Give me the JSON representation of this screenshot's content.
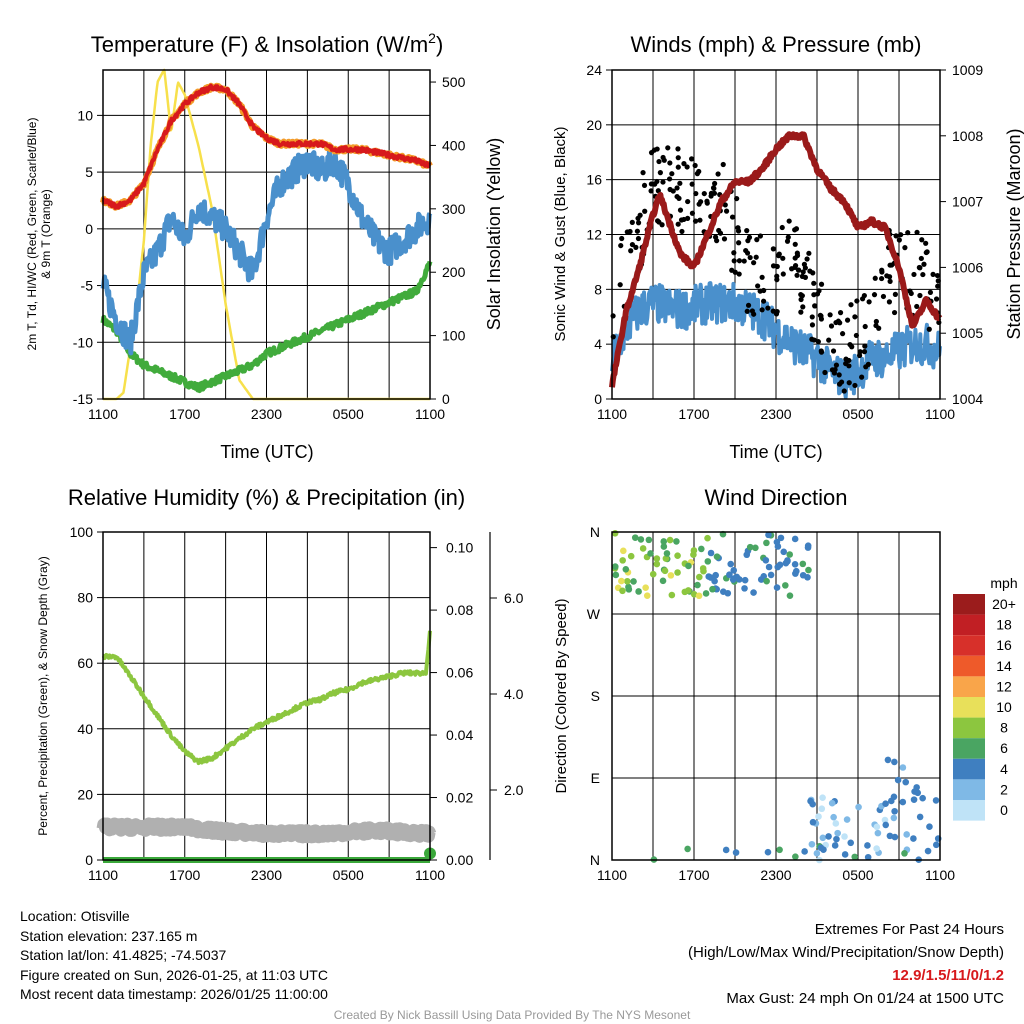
{
  "chart_data": [
    {
      "type": "line",
      "title": "Temperature (F) & Insolation (W/m²)",
      "title_main": "Temperature (F) & Insolation (W/m",
      "title_sup": "2",
      "title_end": ")",
      "xlabel": "Time (UTC)",
      "ylabel_line1": "2m T, Td, HI/WC (Red, Green, Scarlet/Blue)",
      "ylabel_line2": "& 9m T (Orange)",
      "y2label": "Solar Insolation (Yellow)",
      "xticks": [
        "1100",
        "1700",
        "2300",
        "0500",
        "1100"
      ],
      "yticks": [
        -15,
        -10,
        -5,
        0,
        5,
        10
      ],
      "y2ticks": [
        0,
        100,
        200,
        300,
        400,
        500
      ],
      "ylim": [
        -15,
        14
      ],
      "y2lim": [
        0,
        519
      ],
      "xlim": [
        0,
        24
      ],
      "series": [
        {
          "name": "2m T",
          "color": "#d7191c",
          "axis": "left",
          "points": [
            [
              0,
              2.5
            ],
            [
              1,
              2
            ],
            [
              2,
              2.5
            ],
            [
              3,
              4
            ],
            [
              4,
              7
            ],
            [
              5,
              9.5
            ],
            [
              6,
              11
            ],
            [
              7,
              12
            ],
            [
              8,
              12.5
            ],
            [
              9,
              12.3
            ],
            [
              10,
              11
            ],
            [
              11,
              9
            ],
            [
              12,
              8
            ],
            [
              13,
              7.5
            ],
            [
              14,
              7.5
            ],
            [
              16,
              7.5
            ],
            [
              17,
              7
            ],
            [
              19,
              7
            ],
            [
              21,
              6.5
            ],
            [
              23,
              6
            ],
            [
              24,
              5.5
            ]
          ]
        },
        {
          "name": "Td",
          "color": "#4a90cc",
          "axis": "left",
          "noise": 1.2,
          "points": [
            [
              0,
              -5
            ],
            [
              1,
              -8
            ],
            [
              2,
              -10
            ],
            [
              3,
              -4
            ],
            [
              4,
              -2
            ],
            [
              5,
              1
            ],
            [
              6,
              -1
            ],
            [
              7,
              2
            ],
            [
              8,
              1
            ],
            [
              9,
              0
            ],
            [
              10,
              -2
            ],
            [
              11,
              -4
            ],
            [
              12,
              1
            ],
            [
              13,
              4
            ],
            [
              14,
              5
            ],
            [
              15,
              6
            ],
            [
              16,
              5
            ],
            [
              17,
              6
            ],
            [
              18,
              4
            ],
            [
              19,
              1
            ],
            [
              20,
              -1
            ],
            [
              21,
              -2
            ],
            [
              22,
              -1
            ],
            [
              23,
              0
            ],
            [
              24,
              1
            ]
          ]
        },
        {
          "name": "WC",
          "color": "#41ab3c",
          "axis": "left",
          "points": [
            [
              0,
              -8
            ],
            [
              1,
              -9
            ],
            [
              2,
              -11
            ],
            [
              3,
              -12
            ],
            [
              4,
              -12.5
            ],
            [
              5,
              -13
            ],
            [
              6,
              -13.5
            ],
            [
              7,
              -14
            ],
            [
              8,
              -13.5
            ],
            [
              9,
              -13
            ],
            [
              10,
              -12.5
            ],
            [
              11,
              -12
            ],
            [
              12,
              -11
            ],
            [
              14,
              -10
            ],
            [
              16,
              -9
            ],
            [
              18,
              -8
            ],
            [
              20,
              -7
            ],
            [
              22,
              -6
            ],
            [
              23,
              -5.5
            ],
            [
              24,
              -3
            ]
          ]
        },
        {
          "name": "Solar",
          "color": "#f7e04b",
          "axis": "right",
          "points": [
            [
              0,
              0
            ],
            [
              1,
              0
            ],
            [
              1.5,
              10
            ],
            [
              2,
              80
            ],
            [
              2.5,
              150
            ],
            [
              3,
              250
            ],
            [
              3.5,
              400
            ],
            [
              4,
              500
            ],
            [
              4.5,
              520
            ],
            [
              5,
              420
            ],
            [
              5.5,
              500
            ],
            [
              6,
              480
            ],
            [
              7,
              400
            ],
            [
              8,
              300
            ],
            [
              9,
              150
            ],
            [
              10,
              30
            ],
            [
              11,
              0
            ],
            [
              24,
              0
            ]
          ]
        }
      ]
    },
    {
      "type": "line",
      "title": "Winds (mph) & Pressure (mb)",
      "xlabel": "Time (UTC)",
      "ylabel": "Sonic Wind & Gust (Blue, Black)",
      "y2label": "Station Pressure (Maroon)",
      "xticks": [
        "1100",
        "1700",
        "2300",
        "0500",
        "1100"
      ],
      "yticks": [
        0,
        4,
        8,
        12,
        16,
        20,
        24
      ],
      "y2ticks": [
        1004,
        1005,
        1006,
        1007,
        1008,
        1009
      ],
      "ylim": [
        0,
        24
      ],
      "y2lim": [
        1004,
        1009
      ],
      "xlim": [
        0,
        24
      ],
      "series": [
        {
          "name": "Sonic Wind",
          "color": "#4a90cc",
          "axis": "left",
          "noise": 1.5,
          "points": [
            [
              0,
              3
            ],
            [
              1,
              5
            ],
            [
              2,
              6.5
            ],
            [
              3,
              7
            ],
            [
              5,
              6.5
            ],
            [
              7,
              7
            ],
            [
              9,
              7
            ],
            [
              11,
              6
            ],
            [
              12,
              5
            ],
            [
              14,
              3.5
            ],
            [
              15,
              3
            ],
            [
              16,
              2
            ],
            [
              17,
              1.5
            ],
            [
              18,
              2
            ],
            [
              19,
              3
            ],
            [
              20,
              3
            ],
            [
              21,
              3.5
            ],
            [
              22,
              4
            ],
            [
              23,
              4
            ],
            [
              24,
              3.5
            ]
          ]
        },
        {
          "name": "Gust",
          "color": "#000000",
          "axis": "left",
          "type": "scatter",
          "noise": 4,
          "points": [
            [
              0,
              6
            ],
            [
              2,
              11
            ],
            [
              3,
              15
            ],
            [
              4,
              14
            ],
            [
              6,
              14
            ],
            [
              8,
              13
            ],
            [
              10,
              8
            ],
            [
              12,
              8
            ],
            [
              13,
              10
            ],
            [
              14,
              7
            ],
            [
              16,
              3
            ],
            [
              17,
              2
            ],
            [
              18,
              3
            ],
            [
              19,
              4
            ],
            [
              20,
              8
            ],
            [
              22,
              8
            ],
            [
              24,
              6
            ]
          ]
        },
        {
          "name": "Pressure",
          "color": "#9a1a1a",
          "axis": "right",
          "points": [
            [
              0,
              1004.2
            ],
            [
              1,
              1005.3
            ],
            [
              2,
              1006
            ],
            [
              3,
              1006.8
            ],
            [
              3.5,
              1007.1
            ],
            [
              4,
              1006.8
            ],
            [
              5,
              1006.2
            ],
            [
              6,
              1006
            ],
            [
              7,
              1006.5
            ],
            [
              8,
              1007
            ],
            [
              9,
              1007.3
            ],
            [
              10,
              1007.3
            ],
            [
              11,
              1007.5
            ],
            [
              12,
              1007.8
            ],
            [
              13,
              1008
            ],
            [
              14,
              1008
            ],
            [
              15,
              1007.5
            ],
            [
              16,
              1007.2
            ],
            [
              17,
              1007
            ],
            [
              18,
              1006.6
            ],
            [
              19,
              1006.7
            ],
            [
              20,
              1006.6
            ],
            [
              21,
              1006
            ],
            [
              22,
              1005.1
            ],
            [
              23,
              1005.5
            ],
            [
              24,
              1005.2
            ]
          ]
        }
      ]
    },
    {
      "type": "line",
      "title": "Relative Humidity (%) & Precipitation (in)",
      "ylabel": "Percent, Precipitation (Green), & Snow Depth (Gray)",
      "xticks": [
        "1100",
        "1700",
        "2300",
        "0500",
        "1100"
      ],
      "yticks": [
        0,
        20,
        40,
        60,
        80,
        100
      ],
      "y2ticks": [
        "0.00",
        "0.02",
        "0.04",
        "0.06",
        "0.08",
        "0.10"
      ],
      "y3ticks": [
        "2.0",
        "4.0",
        "6.0"
      ],
      "ylim": [
        0,
        100
      ],
      "xlim": [
        0,
        24
      ],
      "series": [
        {
          "name": "RH",
          "color": "#8cc63f",
          "axis": "left",
          "noise": 0.6,
          "points": [
            [
              0,
              62
            ],
            [
              1,
              62
            ],
            [
              2,
              56
            ],
            [
              3,
              50
            ],
            [
              4,
              44
            ],
            [
              5,
              38
            ],
            [
              6,
              33
            ],
            [
              7,
              30
            ],
            [
              8,
              31
            ],
            [
              9,
              34
            ],
            [
              10,
              37
            ],
            [
              11,
              40
            ],
            [
              12,
              42
            ],
            [
              13,
              44
            ],
            [
              14,
              46
            ],
            [
              15,
              48
            ],
            [
              16,
              49
            ],
            [
              17,
              51
            ],
            [
              18,
              52
            ],
            [
              19,
              54
            ],
            [
              20,
              55
            ],
            [
              21,
              56
            ],
            [
              22,
              57
            ],
            [
              23.7,
              57
            ],
            [
              24,
              70
            ]
          ]
        },
        {
          "name": "Snow Depth",
          "color": "#b0b0b0",
          "axis": "left",
          "noise": 1,
          "points": [
            [
              0,
              10
            ],
            [
              6,
              10
            ],
            [
              8,
              9
            ],
            [
              12,
              8
            ],
            [
              16,
              8
            ],
            [
              20,
              9
            ],
            [
              24,
              8
            ]
          ]
        },
        {
          "name": "Precipitation",
          "color": "#3aa83a",
          "axis": "left",
          "points": [
            [
              0,
              0
            ],
            [
              24,
              0
            ]
          ]
        }
      ]
    },
    {
      "type": "scatter",
      "title": "Wind Direction",
      "ylabel": "Direction (Colored By Speed)",
      "xticks": [
        "1100",
        "1700",
        "2300",
        "0500",
        "1100"
      ],
      "yticks": [
        "N",
        "E",
        "S",
        "W",
        "N"
      ],
      "ylim": [
        0,
        360
      ],
      "xlim": [
        0,
        24
      ],
      "legend": {
        "title": "mph",
        "labels": [
          "20+",
          "18",
          "16",
          "14",
          "12",
          "10",
          "8",
          "6",
          "4",
          "2",
          "0"
        ],
        "colors": [
          "#9b1c1c",
          "#c11f24",
          "#d7302a",
          "#ee5a2a",
          "#f9a54a",
          "#e8e05a",
          "#8cc63f",
          "#4aa562",
          "#3f7fc0",
          "#7fb9e6",
          "#bfe3f7"
        ],
        "placement": "right"
      }
    }
  ],
  "footer": {
    "location": "Location: Otisville",
    "elevation": "Station elevation: 237.165 m",
    "latlon": "Station lat/lon: 41.4825; -74.5037",
    "created": "Figure created on Sun, 2026-01-25, at 11:03 UTC",
    "recent": "Most recent data timestamp: 2026/01/25 11:00:00",
    "extremes_title": "Extremes For Past 24 Hours",
    "extremes_sub": "(High/Low/Max Wind/Precipitation/Snow Depth)",
    "extremes_values": "12.9/1.5/11/0/1.2",
    "max_gust": "Max Gust: 24 mph On 01/24 at 1500 UTC",
    "credit": "Created By Nick Bassill Using Data Provided By The NYS Mesonet"
  }
}
